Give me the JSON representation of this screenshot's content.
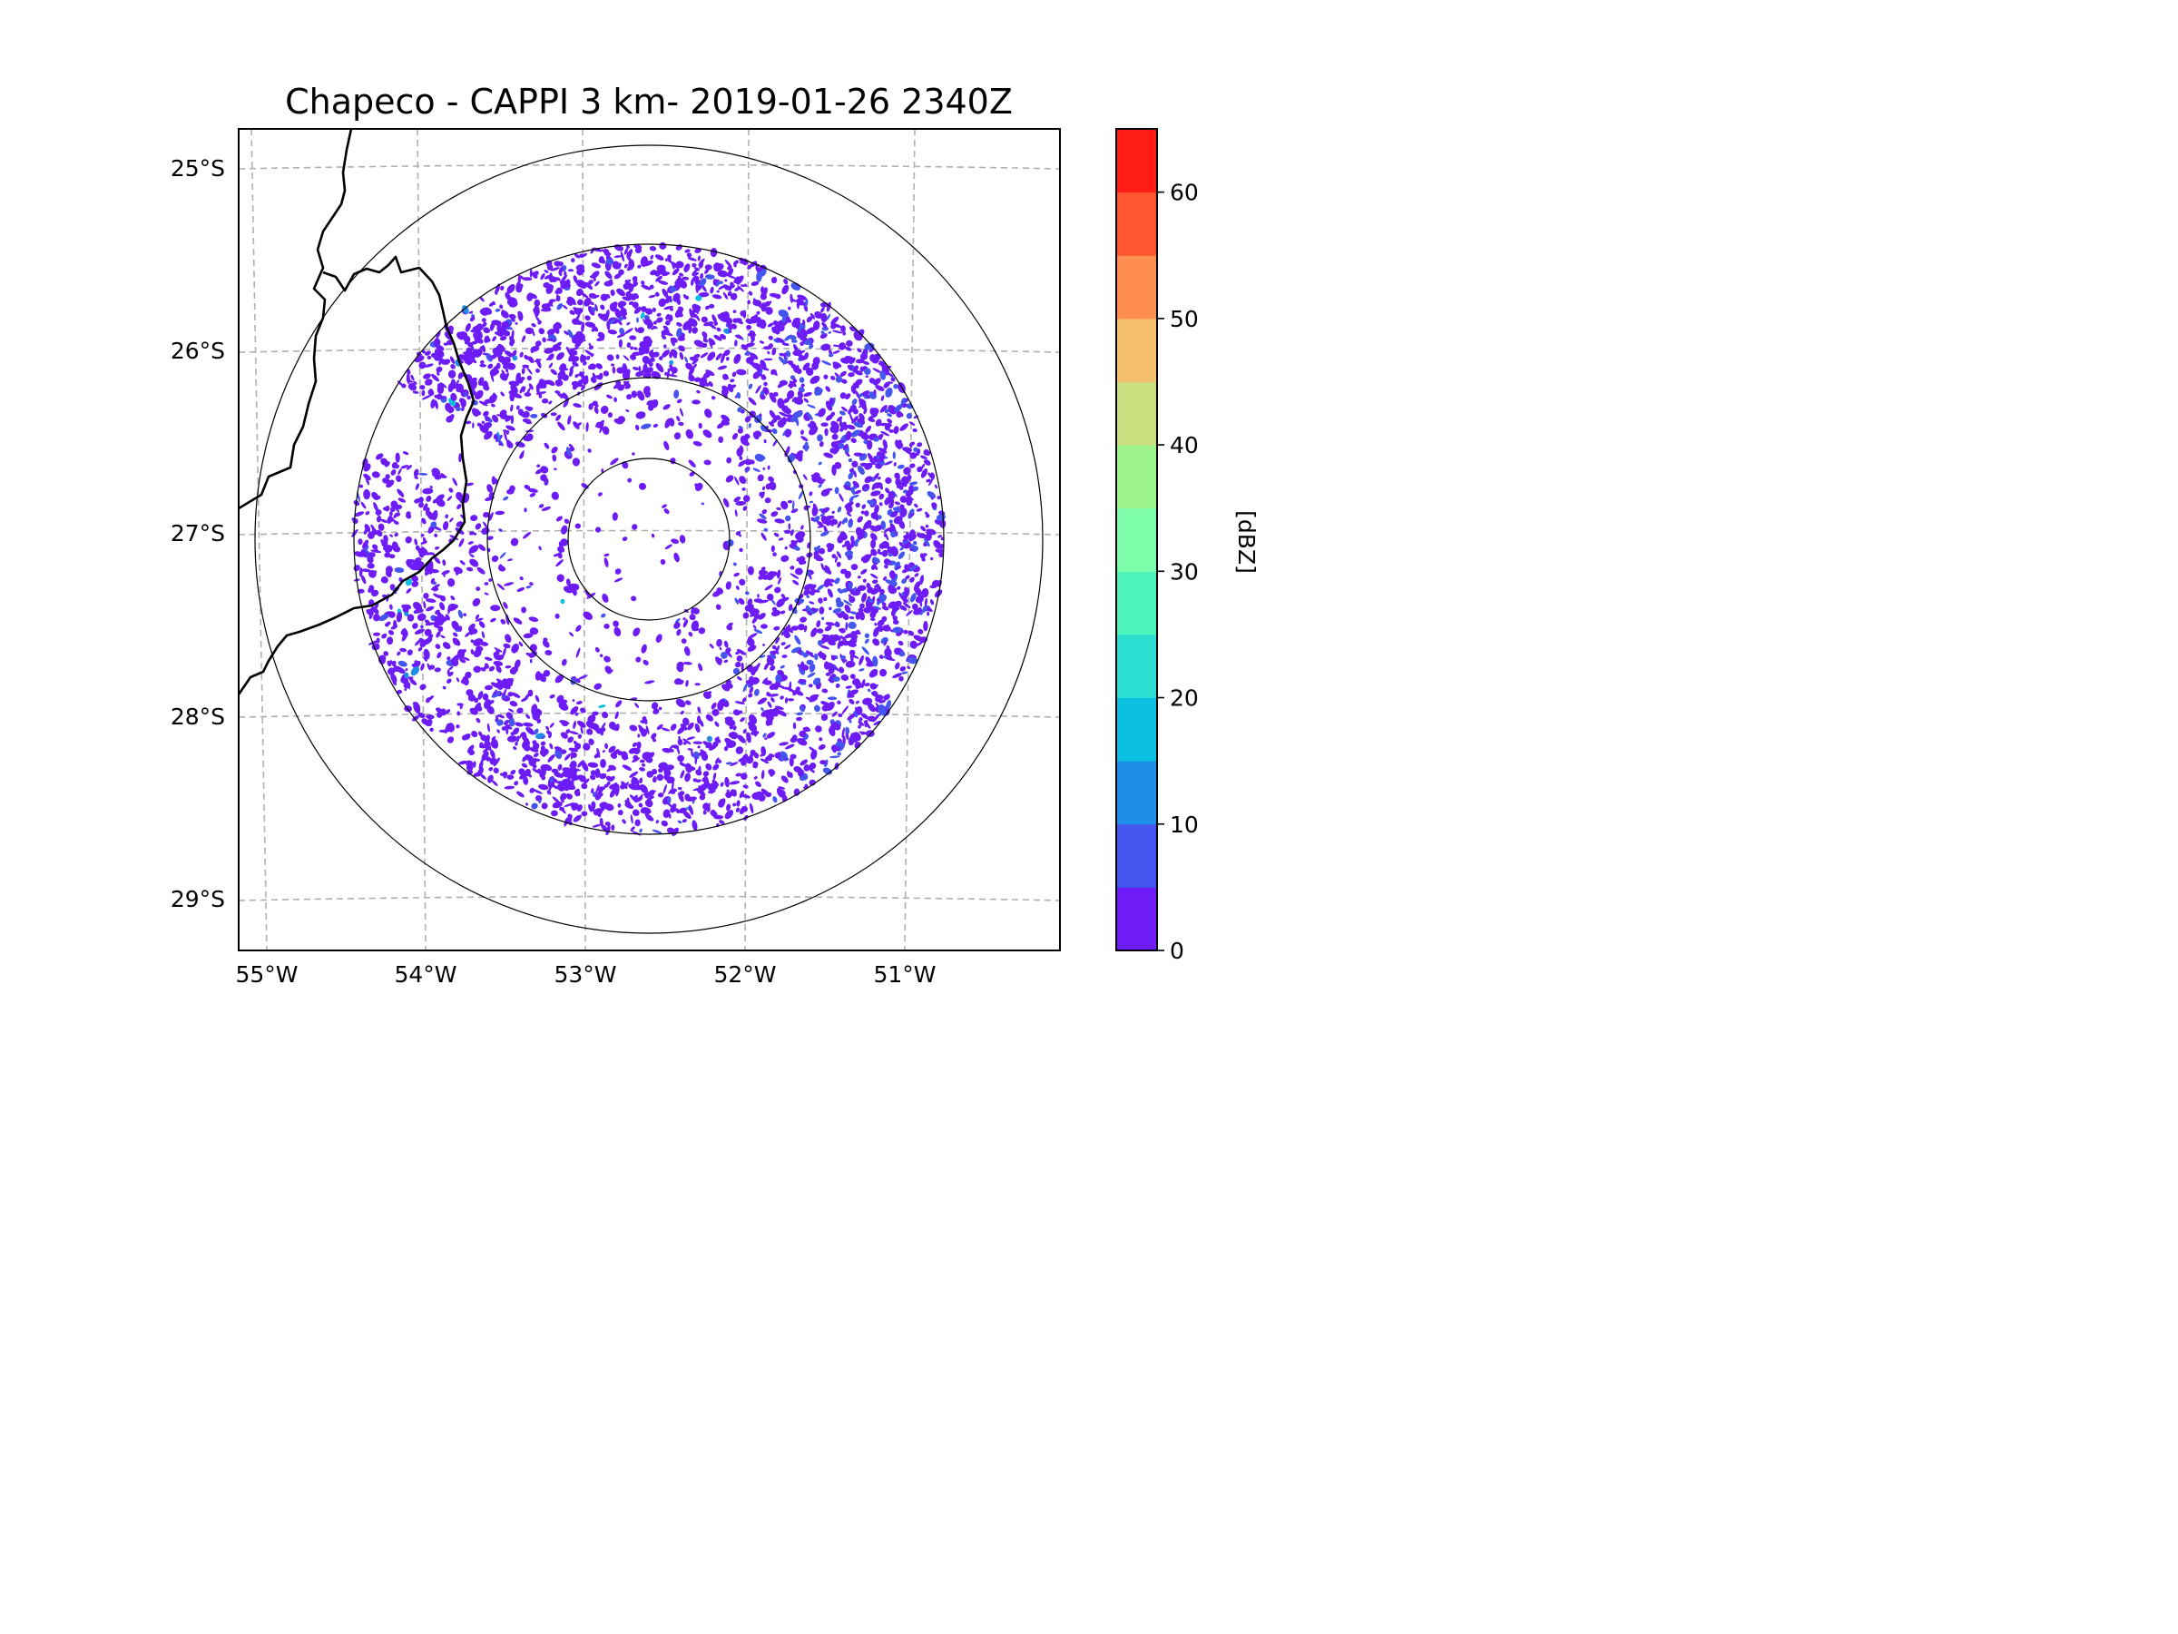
{
  "chart_data": {
    "type": "heatmap",
    "title": "Chapeco - CAPPI 3 km- 2019-01-26 2340Z",
    "lat_ticks": [
      "25°S",
      "26°S",
      "27°S",
      "28°S",
      "29°S"
    ],
    "lon_ticks": [
      "55°W",
      "54°W",
      "53°W",
      "52°W",
      "51°W"
    ],
    "lat_values": [
      -25,
      -26,
      -27,
      -28,
      -29
    ],
    "lon_values": [
      -55,
      -54,
      -53,
      -52,
      -51
    ],
    "radar_center": {
      "lon": -52.6,
      "lat": -27.0
    },
    "range_rings": [
      "inner",
      "middle",
      "data edge",
      "outer"
    ],
    "colorbar": {
      "label": "[dBZ]",
      "ticks": [
        "0",
        "10",
        "20",
        "30",
        "40",
        "50",
        "60"
      ],
      "tick_values": [
        0,
        10,
        20,
        30,
        40,
        50,
        60
      ],
      "range": [
        0,
        65
      ],
      "step": 5,
      "colors": [
        "#6e1cf6",
        "#4456ef",
        "#1e8ee8",
        "#0bbfe0",
        "#2ddfd2",
        "#4ef4bc",
        "#7dfcaa",
        "#9ef48c",
        "#cbde80",
        "#f4bf6c",
        "#ff8e50",
        "#ff5632",
        "#ff1c14"
      ]
    },
    "data_summary": {
      "dominant_value_range": [
        0,
        5
      ],
      "max_observed_approx": 20,
      "coverage": "scattered echoes within radar range, denser ring to the north and east"
    }
  }
}
